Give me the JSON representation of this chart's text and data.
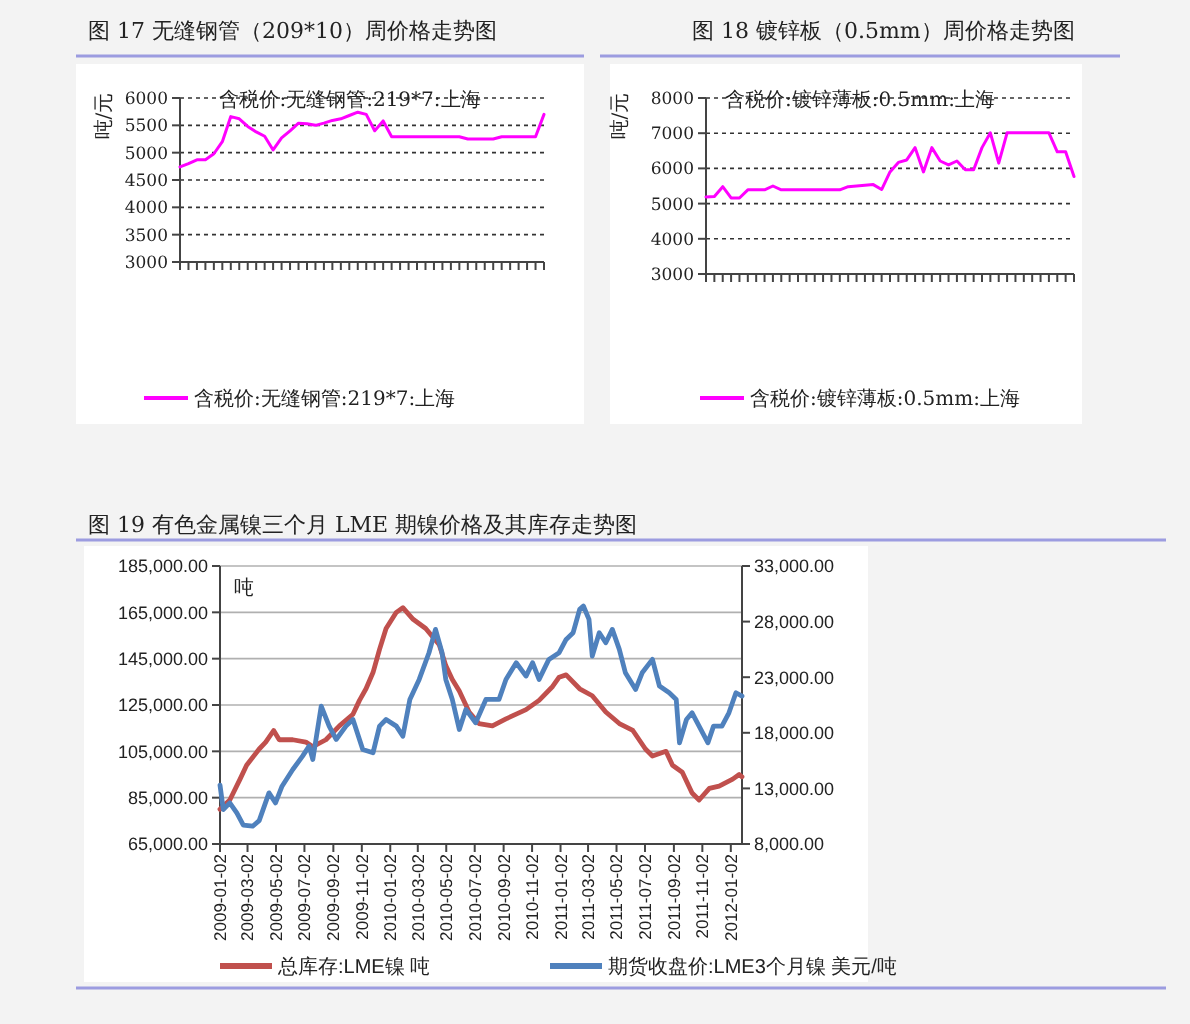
{
  "chart_data": [
    {
      "type": "line",
      "title": "图 17 无缝钢管（209*10）周价格走势图",
      "subtitle": "含税价:无缝钢管:219*7:上海",
      "ylabel": "吨/元",
      "categories": [
        null,
        null,
        null,
        null,
        null,
        null,
        null,
        null,
        null,
        null,
        null,
        null,
        null,
        null,
        null,
        null,
        null,
        null,
        null,
        null,
        null,
        null,
        null,
        null,
        null,
        null,
        null,
        null,
        null,
        null,
        null,
        null,
        null,
        null,
        null,
        null,
        null,
        null,
        null,
        null,
        null,
        null,
        null,
        null
      ],
      "series": [
        {
          "name": "含税价:无缝钢管:219*7:上海",
          "color": "#ff00ff",
          "values": [
            4740,
            4800,
            4870,
            4870,
            4980,
            5200,
            5660,
            5620,
            5480,
            5380,
            5300,
            5050,
            5270,
            5400,
            5540,
            5530,
            5500,
            5540,
            5590,
            5620,
            5680,
            5740,
            5700,
            5400,
            5580,
            5290,
            5290,
            5290,
            5290,
            5290,
            5290,
            5290,
            5290,
            5290,
            5250,
            5250,
            5250,
            5250,
            5290,
            5290,
            5290,
            5290,
            5290,
            5700
          ]
        }
      ],
      "ylim": [
        3000,
        6000
      ],
      "yticks": [
        3000,
        3500,
        4000,
        4500,
        5000,
        5500,
        6000
      ],
      "grid": "y",
      "legend": "bottom"
    },
    {
      "type": "line",
      "title": "图 18 镀锌板（0.5mm）周价格走势图",
      "subtitle": "含税价:镀锌薄板:0.5mm:上海",
      "ylabel": "吨/元",
      "categories": [
        null,
        null,
        null,
        null,
        null,
        null,
        null,
        null,
        null,
        null,
        null,
        null,
        null,
        null,
        null,
        null,
        null,
        null,
        null,
        null,
        null,
        null,
        null,
        null,
        null,
        null,
        null,
        null,
        null,
        null,
        null,
        null,
        null,
        null,
        null,
        null,
        null,
        null,
        null,
        null,
        null,
        null,
        null,
        null,
        null
      ],
      "series": [
        {
          "name": "含税价:镀锌薄板:0.5mm:上海",
          "color": "#ff00ff",
          "values": [
            5190,
            5200,
            5480,
            5160,
            5160,
            5390,
            5390,
            5390,
            5500,
            5390,
            5390,
            5390,
            5390,
            5390,
            5390,
            5390,
            5390,
            5480,
            5500,
            5520,
            5540,
            5400,
            5900,
            6170,
            6240,
            6590,
            5900,
            6590,
            6210,
            6100,
            6210,
            5960,
            5960,
            6590,
            7010,
            6150,
            7010,
            7010,
            7010,
            7010,
            7010,
            7010,
            6470,
            6470,
            5770
          ]
        }
      ],
      "ylim": [
        3000,
        8000
      ],
      "yticks": [
        3000,
        4000,
        5000,
        6000,
        7000,
        8000
      ],
      "grid": "y",
      "legend": "bottom"
    },
    {
      "type": "line",
      "title": "图 19 有色金属镍三个月 LME 期镍价格及其库存走势图",
      "ylabel": "吨",
      "series": [
        {
          "name": "总库存:LME镍 吨",
          "color": "#c0504d",
          "x": [
            "2009-01-02",
            "2009-01-23",
            "2009-02-14",
            "2009-02-28",
            "2009-03-27",
            "2009-04-10",
            "2009-04-27",
            "2009-05-09",
            "2009-06-07",
            "2009-07-05",
            "2009-07-20",
            "2009-08-17",
            "2009-09-15",
            "2009-10-14",
            "2009-10-28",
            "2009-11-11",
            "2009-11-26",
            "2009-12-10",
            "2009-12-24",
            "2010-01-15",
            "2010-01-29",
            "2010-02-20",
            "2010-03-19",
            "2010-04-17",
            "2010-05-01",
            "2010-05-15",
            "2010-05-30",
            "2010-06-20",
            "2010-07-11",
            "2010-08-09",
            "2010-09-07",
            "2010-10-20",
            "2010-11-17",
            "2010-12-16",
            "2010-12-30",
            "2011-01-14",
            "2011-02-12",
            "2011-03-11",
            "2011-04-09",
            "2011-05-08",
            "2011-06-06",
            "2011-07-03",
            "2011-07-18",
            "2011-08-16",
            "2011-08-30",
            "2011-09-20",
            "2011-10-11",
            "2011-10-26",
            "2011-11-17",
            "2011-12-08",
            "2012-01-06",
            "2012-01-20",
            "2012-01-26"
          ],
          "values": [
            80000,
            84000,
            93000,
            99000,
            106000,
            109000,
            114000,
            110000,
            110000,
            109000,
            107000,
            110000,
            116000,
            121000,
            127000,
            132000,
            139000,
            149000,
            158000,
            165000,
            167000,
            162000,
            158000,
            151000,
            142000,
            136000,
            131000,
            122000,
            117000,
            116000,
            119000,
            123000,
            127000,
            133000,
            137000,
            138000,
            132000,
            129000,
            122000,
            117000,
            114000,
            106000,
            103000,
            105000,
            99000,
            96000,
            87000,
            84000,
            89000,
            90000,
            93000,
            95000,
            94000
          ]
        },
        {
          "name": "期货收盘价:LME3个月镍 美元/吨",
          "color": "#4f81bd",
          "axis": "y2",
          "x": [
            "2009-01-02",
            "2009-01-09",
            "2009-01-23",
            "2009-02-07",
            "2009-02-21",
            "2009-03-13",
            "2009-03-27",
            "2009-04-17",
            "2009-05-01",
            "2009-05-15",
            "2009-06-07",
            "2009-06-28",
            "2009-07-12",
            "2009-07-20",
            "2009-08-07",
            "2009-08-24",
            "2009-09-08",
            "2009-09-29",
            "2009-10-14",
            "2009-11-04",
            "2009-11-26",
            "2009-12-10",
            "2009-12-24",
            "2010-01-15",
            "2010-01-29",
            "2010-02-13",
            "2010-03-05",
            "2010-03-26",
            "2010-04-09",
            "2010-04-23",
            "2010-05-01",
            "2010-05-15",
            "2010-05-30",
            "2010-06-13",
            "2010-07-04",
            "2010-07-26",
            "2010-08-23",
            "2010-09-07",
            "2010-09-29",
            "2010-10-20",
            "2010-11-03",
            "2010-11-17",
            "2010-12-08",
            "2010-12-30",
            "2011-01-14",
            "2011-01-29",
            "2011-02-12",
            "2011-02-20",
            "2011-03-04",
            "2011-03-11",
            "2011-03-26",
            "2011-04-09",
            "2011-04-23",
            "2011-05-08",
            "2011-05-21",
            "2011-06-12",
            "2011-06-26",
            "2011-07-18",
            "2011-08-02",
            "2011-08-23",
            "2011-09-07",
            "2011-09-14",
            "2011-09-29",
            "2011-10-11",
            "2011-10-26",
            "2011-11-14",
            "2011-11-26",
            "2011-12-14",
            "2011-12-29",
            "2012-01-13",
            "2012-01-26"
          ],
          "values": [
            13300,
            11100,
            11700,
            10800,
            9700,
            9600,
            10100,
            12600,
            11700,
            13200,
            14700,
            15900,
            16800,
            15600,
            20400,
            18600,
            17400,
            18600,
            19200,
            16500,
            16200,
            18600,
            19200,
            18600,
            17700,
            21000,
            22800,
            25200,
            27300,
            25200,
            22800,
            21000,
            18300,
            20100,
            18900,
            21000,
            21000,
            22800,
            24300,
            23100,
            24300,
            22800,
            24600,
            25200,
            26400,
            27000,
            29100,
            29400,
            28200,
            24900,
            27000,
            26100,
            27300,
            25500,
            23400,
            21900,
            23400,
            24600,
            22200,
            21600,
            21000,
            17100,
            19200,
            19800,
            18600,
            17100,
            18600,
            18600,
            19800,
            21600,
            21300
          ]
        }
      ],
      "xlim": [
        "2009-01-02",
        "2012-01-26"
      ],
      "xticks": [
        "2009-01-02",
        "2009-03-02",
        "2009-05-02",
        "2009-07-02",
        "2009-09-02",
        "2009-11-02",
        "2010-01-02",
        "2010-03-02",
        "2010-05-02",
        "2010-07-02",
        "2010-09-02",
        "2010-11-02",
        "2011-01-02",
        "2011-03-02",
        "2011-05-02",
        "2011-07-02",
        "2011-09-02",
        "2011-11-02",
        "2012-01-02"
      ],
      "ylim": [
        65000,
        185000
      ],
      "yticks": [
        {
          "value": 65000,
          "label": "65,000.00"
        },
        {
          "value": 85000,
          "label": "85,000.00"
        },
        {
          "value": 105000,
          "label": "105,000.00"
        },
        {
          "value": 125000,
          "label": "125,000.00"
        },
        {
          "value": 145000,
          "label": "145,000.00"
        },
        {
          "value": 165000,
          "label": "165,000.00"
        },
        {
          "value": 185000,
          "label": "185,000.00"
        }
      ],
      "y2lim": [
        8000,
        33000
      ],
      "y2ticks": [
        {
          "value": 8000,
          "label": "8,000.00"
        },
        {
          "value": 13000,
          "label": "13,000.00"
        },
        {
          "value": 18000,
          "label": "18,000.00"
        },
        {
          "value": 23000,
          "label": "23,000.00"
        },
        {
          "value": 28000,
          "label": "28,000.00"
        },
        {
          "value": 33000,
          "label": "33,000.00"
        }
      ],
      "grid": "y",
      "legend": "bottom"
    }
  ]
}
